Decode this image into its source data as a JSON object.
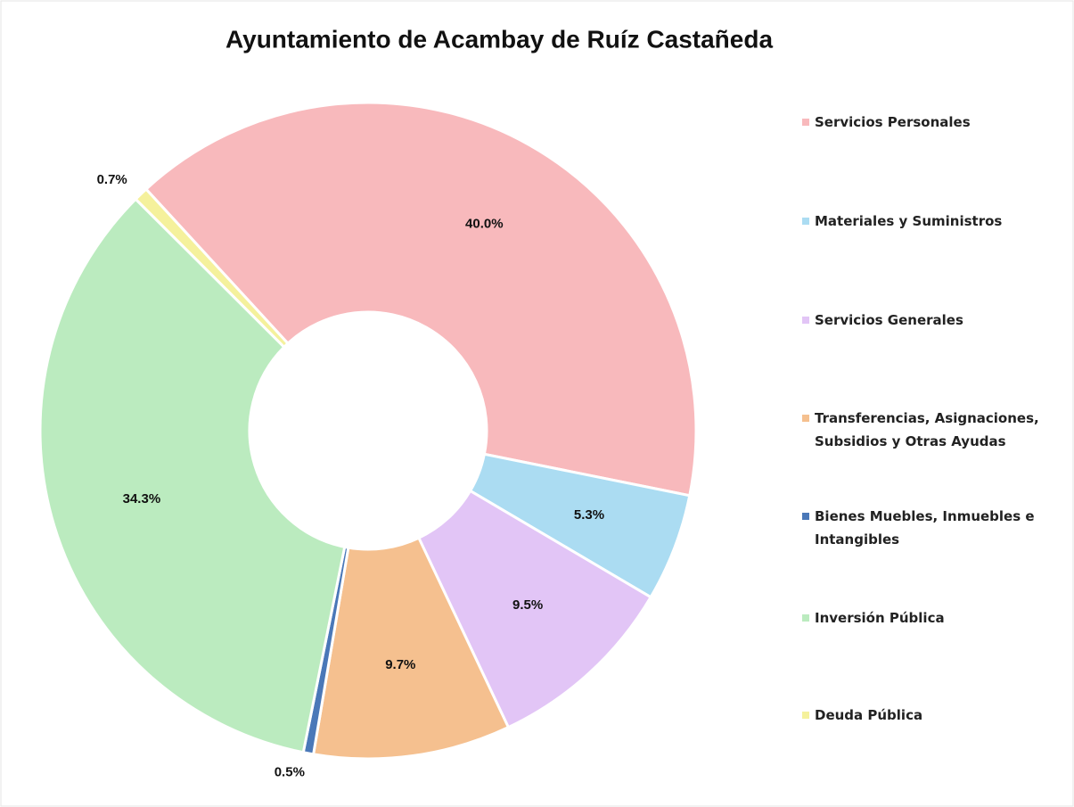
{
  "chart_data": {
    "type": "donut",
    "title": "Ayuntamiento de Acambay de Ruíz Castañeda",
    "categories": [
      "Servicios Personales",
      "Materiales y Suministros",
      "Servicios Generales",
      "Transferencias, Asignaciones, Subsidios y Otras Ayudas",
      "Bienes Muebles, Inmuebles e Intangibles",
      "Inversión Pública",
      "Deuda Pública"
    ],
    "values": [
      40.0,
      5.3,
      9.5,
      9.7,
      0.5,
      34.3,
      0.7
    ],
    "value_labels": [
      "40.0%",
      "5.3%",
      "9.5%",
      "9.7%",
      "0.5%",
      "34.3%",
      "0.7%"
    ],
    "colors": [
      "#f8b9bc",
      "#abdcf2",
      "#e2c5f6",
      "#f5c08f",
      "#4a78b8",
      "#bbebbf",
      "#f5f19c"
    ],
    "legend": "right"
  }
}
